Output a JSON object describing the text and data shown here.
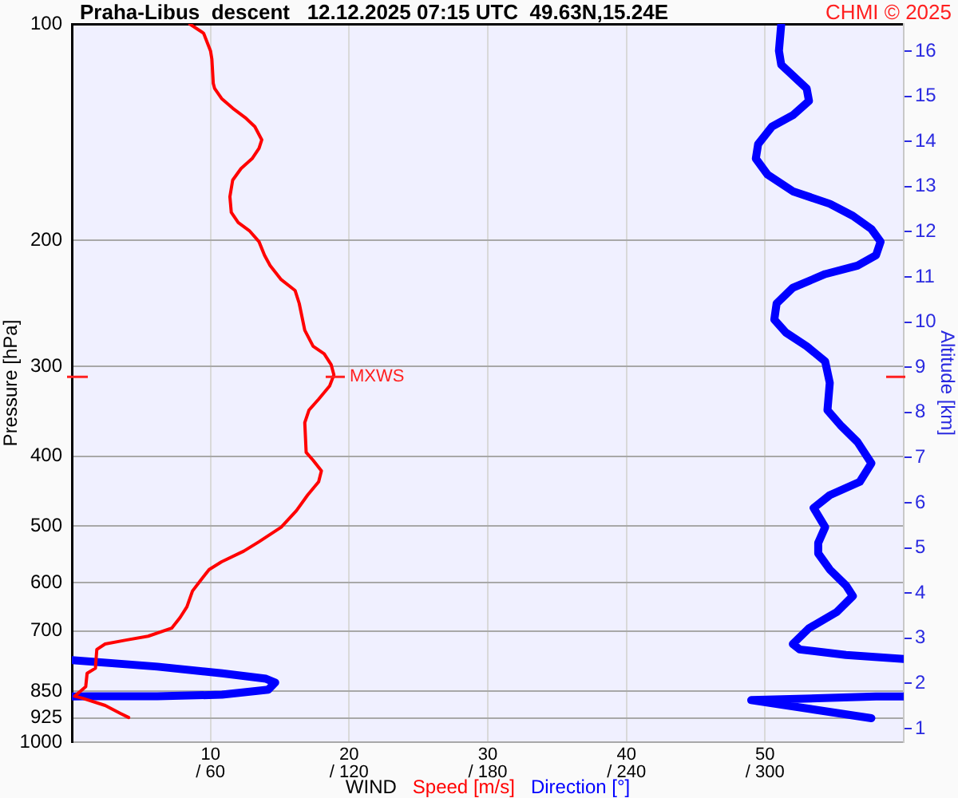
{
  "chart_data": {
    "type": "line",
    "orientation": "horizontal",
    "title": "Praha-Libus  descent   12.12.2025 07:15 UTC  49.63N,15.24E",
    "xlabel": "WIND",
    "ylabel": "Pressure [hPa]",
    "y2label": "Altitude [km]",
    "annotations": [
      "CHMI © 2025",
      {
        "text": "MXWS",
        "x": 19,
        "y": 310
      }
    ],
    "series": [
      {
        "name": "Speed [m/s]",
        "color": "#ff0000",
        "x": [
          100,
          103,
          109,
          112,
          121,
          123,
          127,
          131,
          135,
          139,
          145,
          149,
          154,
          159,
          165,
          174,
          183,
          189,
          194,
          201,
          210,
          217,
          227,
          235,
          245,
          267,
          281,
          288,
          298,
          308,
          319,
          333,
          345,
          359,
          395,
          405,
          419,
          434,
          453,
          476,
          502,
          526,
          542,
          561,
          575,
          595,
          616,
          648,
          671,
          694,
          712,
          721,
          730,
          743,
          789,
          802,
          837,
          863,
          869,
          889,
          912,
          924
        ],
        "values": [
          8.5,
          9.5,
          10.0,
          10.1,
          10.2,
          10.3,
          10.8,
          11.6,
          12.5,
          13.2,
          13.7,
          13.5,
          13.0,
          12.2,
          11.6,
          11.4,
          11.5,
          12.0,
          12.8,
          13.5,
          13.9,
          14.3,
          15.1,
          16.1,
          16.4,
          16.8,
          17.4,
          18.2,
          18.7,
          18.9,
          18.6,
          17.8,
          17.1,
          16.8,
          16.9,
          17.4,
          18.0,
          17.8,
          17.0,
          16.2,
          15.1,
          13.5,
          12.4,
          10.8,
          9.9,
          9.3,
          8.7,
          8.3,
          7.8,
          7.2,
          5.5,
          3.9,
          2.4,
          1.8,
          1.7,
          1.1,
          1.0,
          0.2,
          0.8,
          2.4,
          3.5,
          4.1
        ]
      },
      {
        "name": "Direction [°]",
        "color": "#0000ff",
        "axis": "x2",
        "x": [
          100,
          109,
          114,
          118,
          123,
          128,
          134,
          139,
          147,
          154,
          162,
          171,
          178,
          185,
          193,
          201,
          210,
          217,
          223,
          233,
          245,
          258,
          269,
          281,
          295,
          316,
          345,
          363,
          382,
          409,
          434,
          453,
          472,
          502,
          528,
          546,
          575,
          605,
          626,
          659,
          694,
          730,
          743,
          756,
          766,
          null,
          769,
          785,
          802,
          816,
          826,
          845,
          859,
          863,
          863,
          864,
          null,
          864,
          864,
          874,
          926
        ],
        "values": [
          307,
          306,
          307,
          312,
          318,
          319,
          312,
          303,
          297,
          296,
          301,
          312,
          328,
          338,
          346,
          350,
          348,
          340,
          326,
          312,
          305,
          304,
          309,
          318,
          326,
          328,
          327,
          333,
          340,
          346,
          341,
          328,
          321,
          326,
          323,
          323,
          328,
          335,
          338,
          331,
          319,
          312,
          315,
          335,
          360,
          null,
          0,
          37,
          65,
          84,
          88,
          85,
          65,
          37,
          7,
          0,
          null,
          360,
          348,
          294,
          346
        ]
      }
    ],
    "xlim": [
      0,
      60
    ],
    "xticks": [
      10,
      20,
      30,
      40,
      50
    ],
    "x2lim": [
      0,
      360
    ],
    "x2ticks": [
      {
        "value": 60,
        "label": "/ 60"
      },
      {
        "value": 120,
        "label": "/ 120"
      },
      {
        "value": 180,
        "label": "/ 180"
      },
      {
        "value": 240,
        "label": "/ 240"
      },
      {
        "value": 300,
        "label": "/ 300"
      }
    ],
    "ylim": [
      1000,
      100
    ],
    "yticks": [
      100,
      200,
      300,
      400,
      500,
      600,
      700,
      850,
      925,
      1000
    ],
    "y2lim": [
      0.7,
      16.6
    ],
    "y2ticks": [
      1,
      2,
      3,
      4,
      5,
      6,
      7,
      8,
      9,
      10,
      11,
      12,
      13,
      14,
      15,
      16
    ],
    "log": "y",
    "grid": true,
    "legend": "bottom",
    "marker": "none"
  }
}
